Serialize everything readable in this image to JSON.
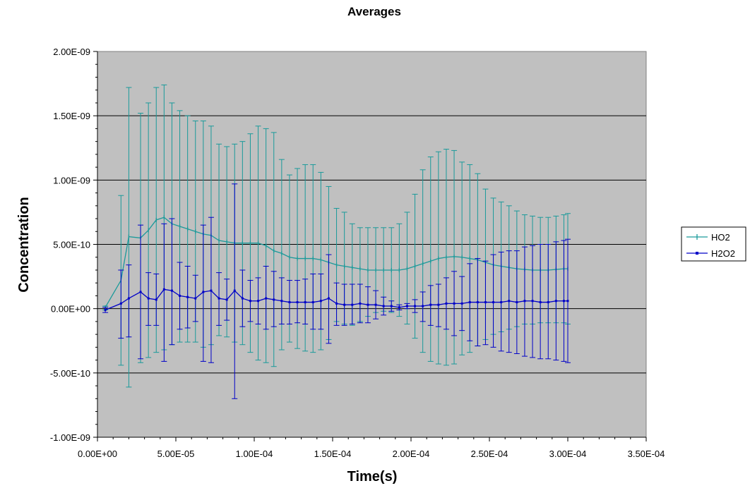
{
  "chart_data": {
    "type": "line",
    "title": "Averages",
    "xlabel": "Time(s)",
    "ylabel": "Concentration",
    "xlim": [
      0,
      0.00035
    ],
    "ylim": [
      -1e-09,
      2e-09
    ],
    "x_ticks": [
      "0.00E+00",
      "5.00E-05",
      "1.00E-04",
      "1.50E-04",
      "2.00E-04",
      "2.50E-04",
      "3.00E-04",
      "3.50E-04"
    ],
    "y_ticks": [
      "-1.00E-09",
      "-5.00E-10",
      "0.00E+00",
      "5.00E-10",
      "1.00E-09",
      "1.50E-09",
      "2.00E-09"
    ],
    "grid": "horizontal",
    "legend_position": "right",
    "plot_background": "#c0c0c0",
    "x": [
      5e-06,
      1.5e-05,
      2e-05,
      2.75e-05,
      3.25e-05,
      3.75e-05,
      4.25e-05,
      4.75e-05,
      5.25e-05,
      5.75e-05,
      6.25e-05,
      6.75e-05,
      7.25e-05,
      7.75e-05,
      8.25e-05,
      8.75e-05,
      9.25e-05,
      9.75e-05,
      0.0001025,
      0.0001075,
      0.0001125,
      0.0001175,
      0.0001225,
      0.0001275,
      0.0001325,
      0.0001375,
      0.0001425,
      0.0001475,
      0.0001525,
      0.0001575,
      0.0001625,
      0.0001675,
      0.0001725,
      0.0001775,
      0.0001825,
      0.0001875,
      0.0001925,
      0.0001975,
      0.0002025,
      0.0002075,
      0.0002125,
      0.0002175,
      0.0002225,
      0.0002275,
      0.0002325,
      0.0002375,
      0.0002425,
      0.0002475,
      0.0002525,
      0.0002575,
      0.0002625,
      0.0002675,
      0.0002725,
      0.0002775,
      0.0002825,
      0.0002875,
      0.0002925,
      0.0002975,
      0.0003
    ],
    "series": [
      {
        "name": "HO2",
        "color": "#1a9a9a",
        "values": [
          1e-11,
          2.2e-10,
          5.6e-10,
          5.5e-10,
          6.1e-10,
          6.9e-10,
          7.1e-10,
          6.6e-10,
          6.4e-10,
          6.2e-10,
          6e-10,
          5.8e-10,
          5.7e-10,
          5.3e-10,
          5.2e-10,
          5.1e-10,
          5.1e-10,
          5.1e-10,
          5.1e-10,
          4.9e-10,
          4.5e-10,
          4.3e-10,
          4e-10,
          3.9e-10,
          3.9e-10,
          3.9e-10,
          3.8e-10,
          3.6e-10,
          3.4e-10,
          3.3e-10,
          3.2e-10,
          3.1e-10,
          3e-10,
          3e-10,
          3e-10,
          3e-10,
          3e-10,
          3.1e-10,
          3.3e-10,
          3.5e-10,
          3.7e-10,
          3.9e-10,
          4e-10,
          4.05e-10,
          4e-10,
          3.9e-10,
          3.8e-10,
          3.6e-10,
          3.4e-10,
          3.3e-10,
          3.2e-10,
          3.1e-10,
          3.05e-10,
          3e-10,
          3e-10,
          3e-10,
          3.05e-10,
          3.1e-10,
          3.1e-10
        ],
        "error_upper": [
          2e-11,
          8.8e-10,
          1.72e-09,
          1.52e-09,
          1.6e-09,
          1.72e-09,
          1.74e-09,
          1.6e-09,
          1.54e-09,
          1.5e-09,
          1.46e-09,
          1.46e-09,
          1.42e-09,
          1.28e-09,
          1.26e-09,
          1.28e-09,
          1.3e-09,
          1.36e-09,
          1.42e-09,
          1.4e-09,
          1.37e-09,
          1.16e-09,
          1.04e-09,
          1.09e-09,
          1.12e-09,
          1.12e-09,
          1.06e-09,
          9.5e-10,
          7.8e-10,
          7.5e-10,
          6.6e-10,
          6.3e-10,
          6.3e-10,
          6.3e-10,
          6.3e-10,
          6.3e-10,
          6.6e-10,
          7.5e-10,
          8.9e-10,
          1.08e-09,
          1.18e-09,
          1.22e-09,
          1.24e-09,
          1.23e-09,
          1.14e-09,
          1.12e-09,
          1.05e-09,
          9.3e-10,
          8.6e-10,
          8.3e-10,
          8e-10,
          7.6e-10,
          7.3e-10,
          7.2e-10,
          7.1e-10,
          7.1e-10,
          7.2e-10,
          7.3e-10,
          7.4e-10
        ],
        "error_lower": [
          -1e-11,
          -4.4e-10,
          -6.1e-10,
          -4.2e-10,
          -3.8e-10,
          -3.4e-10,
          -3.2e-10,
          -2.8e-10,
          -2.6e-10,
          -2.6e-10,
          -2.6e-10,
          -3e-10,
          -2.8e-10,
          -2.1e-10,
          -2.2e-10,
          -2.6e-10,
          -2.8e-10,
          -3.4e-10,
          -4e-10,
          -4.2e-10,
          -4.5e-10,
          -3.2e-10,
          -2.6e-10,
          -3.1e-10,
          -3.3e-10,
          -3.4e-10,
          -3.2e-10,
          -2.4e-10,
          -1e-10,
          -1.2e-10,
          -1.3e-10,
          -1e-10,
          -6e-11,
          -3e-11,
          -2e-11,
          -3e-11,
          -6e-11,
          -1.2e-10,
          -2.3e-10,
          -3.4e-10,
          -4.1e-10,
          -4.3e-10,
          -4.4e-10,
          -4.3e-10,
          -3.6e-10,
          -3.4e-10,
          -2.9e-10,
          -2.4e-10,
          -2e-10,
          -1.8e-10,
          -1.6e-10,
          -1.4e-10,
          -1.2e-10,
          -1.2e-10,
          -1.1e-10,
          -1.1e-10,
          -1.1e-10,
          -1.1e-10,
          -1.2e-10
        ]
      },
      {
        "name": "H2O2",
        "color": "#0000c8",
        "values": [
          -1e-11,
          4e-11,
          8e-11,
          1.3e-10,
          8e-11,
          7e-11,
          1.5e-10,
          1.4e-10,
          1e-10,
          9e-11,
          8e-11,
          1.3e-10,
          1.4e-10,
          8e-11,
          7e-11,
          1.4e-10,
          8e-11,
          6e-11,
          6e-11,
          8e-11,
          7e-11,
          6e-11,
          5e-11,
          5e-11,
          5e-11,
          5e-11,
          6e-11,
          8e-11,
          4e-11,
          3e-11,
          3e-11,
          4e-11,
          3e-11,
          3e-11,
          2e-11,
          2e-11,
          1e-11,
          2e-11,
          2e-11,
          2e-11,
          3e-11,
          3e-11,
          4e-11,
          4e-11,
          4e-11,
          5e-11,
          5e-11,
          5e-11,
          5e-11,
          5e-11,
          6e-11,
          5e-11,
          6e-11,
          6e-11,
          5e-11,
          5e-11,
          6e-11,
          6e-11,
          6e-11
        ],
        "error_upper": [
          1e-11,
          3e-10,
          3.4e-10,
          6.5e-10,
          2.8e-10,
          2.7e-10,
          6.6e-10,
          7e-10,
          3.6e-10,
          3.3e-10,
          2.6e-10,
          6.5e-10,
          7.1e-10,
          2.8e-10,
          2.3e-10,
          9.7e-10,
          3e-10,
          2.2e-10,
          2.4e-10,
          3.3e-10,
          2.9e-10,
          2.4e-10,
          2.2e-10,
          2.2e-10,
          2.3e-10,
          2.7e-10,
          2.7e-10,
          4.2e-10,
          2e-10,
          1.9e-10,
          1.9e-10,
          1.9e-10,
          1.7e-10,
          1.4e-10,
          9e-11,
          6e-11,
          3e-11,
          4e-11,
          7e-11,
          1.3e-10,
          1.8e-10,
          1.9e-10,
          2.4e-10,
          2.9e-10,
          2.5e-10,
          3.5e-10,
          3.9e-10,
          3.7e-10,
          4.2e-10,
          4.4e-10,
          4.5e-10,
          4.5e-10,
          4.8e-10,
          4.9e-10,
          5e-10,
          5e-10,
          5.2e-10,
          5.3e-10,
          5.4e-10
        ],
        "error_lower": [
          -3e-11,
          -2.3e-10,
          -2.2e-10,
          -3.9e-10,
          -1.3e-10,
          -1.3e-10,
          -4.1e-10,
          -2.8e-10,
          -1.6e-10,
          -1.5e-10,
          -1e-10,
          -4.1e-10,
          -4.2e-10,
          -1.3e-10,
          -9e-11,
          -7e-10,
          -1.4e-10,
          -1e-10,
          -1.2e-10,
          -1.6e-10,
          -1.4e-10,
          -1.2e-10,
          -1.2e-10,
          -1.1e-10,
          -1.2e-10,
          -1.6e-10,
          -1.6e-10,
          -2.7e-10,
          -1.3e-10,
          -1.3e-10,
          -1.2e-10,
          -1.1e-10,
          -1.1e-10,
          -8e-11,
          -5e-11,
          -2e-11,
          -1e-11,
          0,
          -3e-11,
          -1e-10,
          -1.3e-10,
          -1.4e-10,
          -1.6e-10,
          -2.1e-10,
          -1.7e-10,
          -2.5e-10,
          -2.9e-10,
          -2.8e-10,
          -3e-10,
          -3.3e-10,
          -3.4e-10,
          -3.5e-10,
          -3.7e-10,
          -3.8e-10,
          -3.9e-10,
          -3.9e-10,
          -4e-10,
          -4.1e-10,
          -4.2e-10
        ]
      }
    ]
  }
}
